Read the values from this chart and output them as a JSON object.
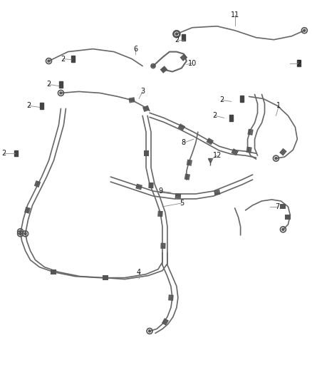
{
  "background_color": "#ffffff",
  "line_color": "#666666",
  "lw": 1.2,
  "text_color": "#111111",
  "fig_width": 4.38,
  "fig_height": 5.33,
  "dpi": 100
}
